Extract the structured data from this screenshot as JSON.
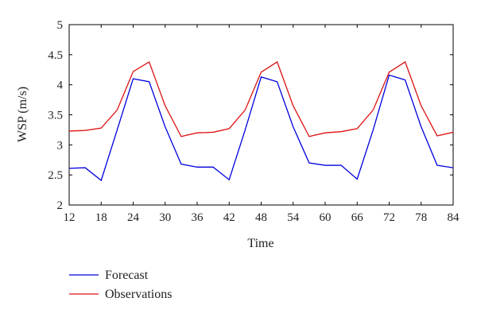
{
  "chart_data": {
    "type": "line",
    "xlabel": "Time",
    "ylabel": "WSP (m/s)",
    "xlim": [
      12,
      84
    ],
    "ylim": [
      2,
      5
    ],
    "xticks": [
      12,
      18,
      24,
      30,
      36,
      42,
      48,
      54,
      60,
      66,
      72,
      78,
      84
    ],
    "yticks": [
      2,
      2.5,
      3,
      3.5,
      4,
      4.5,
      5
    ],
    "x": [
      12,
      15,
      18,
      21,
      24,
      27,
      30,
      33,
      36,
      39,
      42,
      45,
      48,
      51,
      54,
      57,
      60,
      63,
      66,
      69,
      72,
      75,
      78,
      81,
      84
    ],
    "series": [
      {
        "name": "Forecast",
        "color": "#0000dd",
        "values": [
          2.61,
          2.62,
          2.41,
          3.25,
          4.1,
          4.05,
          3.3,
          2.68,
          2.63,
          2.63,
          2.42,
          3.25,
          4.13,
          4.05,
          3.3,
          2.7,
          2.66,
          2.66,
          2.43,
          3.25,
          4.16,
          4.08,
          3.3,
          2.66,
          2.62
        ]
      },
      {
        "name": "Observations",
        "color": "#dd1111",
        "values": [
          3.23,
          3.24,
          3.28,
          3.58,
          4.22,
          4.38,
          3.65,
          3.14,
          3.2,
          3.21,
          3.27,
          3.58,
          4.21,
          4.38,
          3.65,
          3.14,
          3.2,
          3.22,
          3.27,
          3.58,
          4.21,
          4.38,
          3.65,
          3.15,
          3.21
        ]
      }
    ],
    "grid": false,
    "legend_position": "bottom-left"
  }
}
